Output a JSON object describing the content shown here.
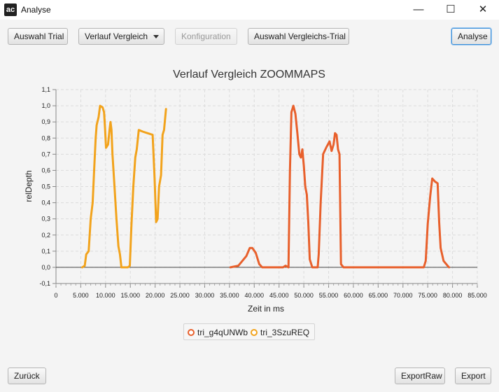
{
  "window": {
    "icon_text": "ac",
    "title": "Analyse",
    "minimize_glyph": "—",
    "maximize_glyph": "☐",
    "close_glyph": "✕"
  },
  "toolbar": {
    "select_trial": "Auswahl Trial",
    "compare_dropdown": "Verlauf Vergleich",
    "configuration": "Konfiguration",
    "select_compare_trial": "Auswahl Vergleichs-Trial",
    "analyse": "Analyse"
  },
  "footer": {
    "back": "Zurück",
    "export_raw": "ExportRaw",
    "export": "Export"
  },
  "colors": {
    "series_1": "#e8602c",
    "series_2": "#f2a31c"
  },
  "chart_data": {
    "type": "line",
    "title": "Verlauf Vergleich ZOOMMAPS",
    "xlabel": "Zeit in ms",
    "ylabel": "relDepth",
    "xlim": [
      0,
      85000
    ],
    "ylim": [
      -0.1,
      1.1
    ],
    "x_ticks": [
      0,
      5000,
      10000,
      15000,
      20000,
      25000,
      30000,
      35000,
      40000,
      45000,
      50000,
      55000,
      60000,
      65000,
      70000,
      75000,
      80000,
      85000
    ],
    "x_tick_labels": [
      "0",
      "5.000",
      "10.000",
      "15.000",
      "20.000",
      "25.000",
      "30.000",
      "35.000",
      "40.000",
      "45.000",
      "50.000",
      "55.000",
      "60.000",
      "65.000",
      "70.000",
      "75.000",
      "80.000",
      "85.000"
    ],
    "y_ticks": [
      -0.1,
      0,
      0.1,
      0.2,
      0.3,
      0.4,
      0.5,
      0.6,
      0.7,
      0.8,
      0.9,
      1.0,
      1.1
    ],
    "y_tick_labels": [
      "-0,1",
      "0,0",
      "0,1",
      "0,2",
      "0,3",
      "0,4",
      "0,5",
      "0,6",
      "0,7",
      "0,8",
      "0,9",
      "1,0",
      "1,1"
    ],
    "grid": true,
    "legend_position": "bottom",
    "series": [
      {
        "name": "tri_g4qUNWb",
        "points": [
          [
            35200,
            0
          ],
          [
            36800,
            0.01
          ],
          [
            37600,
            0.04
          ],
          [
            38400,
            0.07
          ],
          [
            39100,
            0.12
          ],
          [
            39600,
            0.12
          ],
          [
            40300,
            0.09
          ],
          [
            41000,
            0.02
          ],
          [
            41600,
            0
          ],
          [
            43500,
            0
          ],
          [
            45800,
            0
          ],
          [
            46300,
            0.01
          ],
          [
            46900,
            0
          ],
          [
            47200,
            0.6
          ],
          [
            47500,
            0.96
          ],
          [
            47900,
            1.0
          ],
          [
            48300,
            0.95
          ],
          [
            48700,
            0.83
          ],
          [
            49100,
            0.7
          ],
          [
            49400,
            0.68
          ],
          [
            49700,
            0.73
          ],
          [
            50000,
            0.63
          ],
          [
            50300,
            0.5
          ],
          [
            50600,
            0.45
          ],
          [
            50900,
            0.28
          ],
          [
            51200,
            0.05
          ],
          [
            51700,
            0
          ],
          [
            52400,
            0
          ],
          [
            52800,
            0
          ],
          [
            53000,
            0.08
          ],
          [
            53400,
            0.4
          ],
          [
            53900,
            0.7
          ],
          [
            54500,
            0.74
          ],
          [
            55200,
            0.78
          ],
          [
            55600,
            0.72
          ],
          [
            56000,
            0.76
          ],
          [
            56300,
            0.83
          ],
          [
            56600,
            0.82
          ],
          [
            56900,
            0.73
          ],
          [
            57200,
            0.7
          ],
          [
            57500,
            0.02
          ],
          [
            58000,
            0
          ],
          [
            65000,
            0
          ],
          [
            70000,
            0
          ],
          [
            74200,
            0
          ],
          [
            74600,
            0.04
          ],
          [
            75000,
            0.27
          ],
          [
            75500,
            0.44
          ],
          [
            75900,
            0.55
          ],
          [
            76500,
            0.53
          ],
          [
            77000,
            0.52
          ],
          [
            77300,
            0.28
          ],
          [
            77600,
            0.12
          ],
          [
            78200,
            0.04
          ],
          [
            79000,
            0.01
          ],
          [
            79300,
            0
          ]
        ]
      },
      {
        "name": "tri_3SzuREQ",
        "points": [
          [
            5300,
            0
          ],
          [
            5800,
            0.01
          ],
          [
            6100,
            0.08
          ],
          [
            6600,
            0.1
          ],
          [
            7000,
            0.3
          ],
          [
            7400,
            0.4
          ],
          [
            7700,
            0.6
          ],
          [
            8000,
            0.8
          ],
          [
            8200,
            0.88
          ],
          [
            8600,
            0.93
          ],
          [
            8900,
            1.0
          ],
          [
            9400,
            0.99
          ],
          [
            9700,
            0.96
          ],
          [
            9900,
            0.86
          ],
          [
            10100,
            0.74
          ],
          [
            10500,
            0.76
          ],
          [
            10800,
            0.85
          ],
          [
            11000,
            0.9
          ],
          [
            11200,
            0.85
          ],
          [
            11400,
            0.7
          ],
          [
            11800,
            0.5
          ],
          [
            12200,
            0.3
          ],
          [
            12600,
            0.13
          ],
          [
            12900,
            0.08
          ],
          [
            13200,
            0
          ],
          [
            14500,
            0
          ],
          [
            14900,
            0.01
          ],
          [
            15200,
            0.25
          ],
          [
            15600,
            0.5
          ],
          [
            16000,
            0.68
          ],
          [
            16300,
            0.73
          ],
          [
            16700,
            0.85
          ],
          [
            17500,
            0.84
          ],
          [
            18500,
            0.83
          ],
          [
            19500,
            0.82
          ],
          [
            19900,
            0.55
          ],
          [
            20200,
            0.28
          ],
          [
            20500,
            0.3
          ],
          [
            20800,
            0.5
          ],
          [
            21200,
            0.57
          ],
          [
            21500,
            0.82
          ],
          [
            21800,
            0.85
          ],
          [
            22200,
            0.98
          ]
        ]
      }
    ]
  }
}
